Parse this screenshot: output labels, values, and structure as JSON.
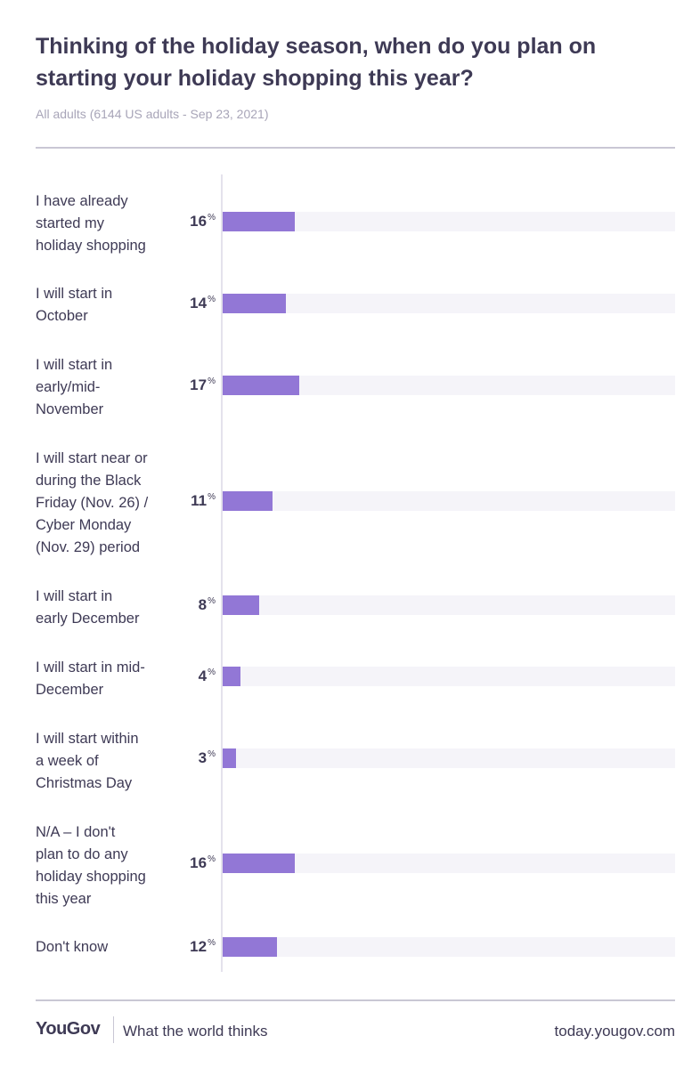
{
  "header": {
    "title": "Thinking of the holiday season, when do you plan on\nstarting your holiday shopping this year?",
    "subtitle": "All adults (6144 US adults - Sep 23, 2021)"
  },
  "chart_data": {
    "type": "bar",
    "orientation": "horizontal",
    "title": "Thinking of the holiday season, when do you plan on starting your holiday shopping this year?",
    "subtitle": "All adults (6144 US adults - Sep 23, 2021)",
    "value_suffix": "%",
    "xlim": [
      0,
      100
    ],
    "grid": false,
    "categories": [
      "I have already started my holiday shopping",
      "I will start in October",
      "I will start in early/mid-November",
      "I will start near or during the Black Friday (Nov. 26) / Cyber Monday (Nov. 29) period",
      "I will start in early December",
      "I will start in mid-December",
      "I will start within a week of Christmas Day",
      "N/A – I don't plan to do any holiday shopping this year",
      "Don't know"
    ],
    "values": [
      16,
      14,
      17,
      11,
      8,
      4,
      3,
      16,
      12
    ]
  },
  "footer": {
    "logo": "YouGov",
    "tagline": "What the world thinks",
    "url": "today.yougov.com"
  },
  "colors": {
    "bar": "#9277d6",
    "track": "#f5f4f9",
    "text": "#3e3a55",
    "muted": "#a8a5b8"
  }
}
